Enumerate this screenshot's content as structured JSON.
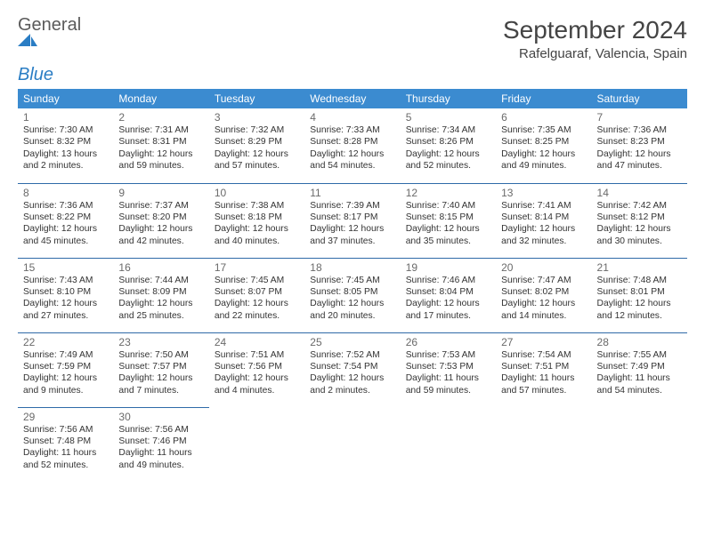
{
  "logo": {
    "word1": "General",
    "word2": "Blue"
  },
  "header": {
    "month_title": "September 2024",
    "location": "Rafelguaraf, Valencia, Spain"
  },
  "colors": {
    "header_bg": "#3b8bd0",
    "header_text": "#ffffff",
    "row_border": "#2f6aa8",
    "logo_blue": "#2a7dc4"
  },
  "day_labels": [
    "Sunday",
    "Monday",
    "Tuesday",
    "Wednesday",
    "Thursday",
    "Friday",
    "Saturday"
  ],
  "weeks": [
    [
      {
        "n": "1",
        "sr": "Sunrise: 7:30 AM",
        "ss": "Sunset: 8:32 PM",
        "dl": "Daylight: 13 hours and 2 minutes."
      },
      {
        "n": "2",
        "sr": "Sunrise: 7:31 AM",
        "ss": "Sunset: 8:31 PM",
        "dl": "Daylight: 12 hours and 59 minutes."
      },
      {
        "n": "3",
        "sr": "Sunrise: 7:32 AM",
        "ss": "Sunset: 8:29 PM",
        "dl": "Daylight: 12 hours and 57 minutes."
      },
      {
        "n": "4",
        "sr": "Sunrise: 7:33 AM",
        "ss": "Sunset: 8:28 PM",
        "dl": "Daylight: 12 hours and 54 minutes."
      },
      {
        "n": "5",
        "sr": "Sunrise: 7:34 AM",
        "ss": "Sunset: 8:26 PM",
        "dl": "Daylight: 12 hours and 52 minutes."
      },
      {
        "n": "6",
        "sr": "Sunrise: 7:35 AM",
        "ss": "Sunset: 8:25 PM",
        "dl": "Daylight: 12 hours and 49 minutes."
      },
      {
        "n": "7",
        "sr": "Sunrise: 7:36 AM",
        "ss": "Sunset: 8:23 PM",
        "dl": "Daylight: 12 hours and 47 minutes."
      }
    ],
    [
      {
        "n": "8",
        "sr": "Sunrise: 7:36 AM",
        "ss": "Sunset: 8:22 PM",
        "dl": "Daylight: 12 hours and 45 minutes."
      },
      {
        "n": "9",
        "sr": "Sunrise: 7:37 AM",
        "ss": "Sunset: 8:20 PM",
        "dl": "Daylight: 12 hours and 42 minutes."
      },
      {
        "n": "10",
        "sr": "Sunrise: 7:38 AM",
        "ss": "Sunset: 8:18 PM",
        "dl": "Daylight: 12 hours and 40 minutes."
      },
      {
        "n": "11",
        "sr": "Sunrise: 7:39 AM",
        "ss": "Sunset: 8:17 PM",
        "dl": "Daylight: 12 hours and 37 minutes."
      },
      {
        "n": "12",
        "sr": "Sunrise: 7:40 AM",
        "ss": "Sunset: 8:15 PM",
        "dl": "Daylight: 12 hours and 35 minutes."
      },
      {
        "n": "13",
        "sr": "Sunrise: 7:41 AM",
        "ss": "Sunset: 8:14 PM",
        "dl": "Daylight: 12 hours and 32 minutes."
      },
      {
        "n": "14",
        "sr": "Sunrise: 7:42 AM",
        "ss": "Sunset: 8:12 PM",
        "dl": "Daylight: 12 hours and 30 minutes."
      }
    ],
    [
      {
        "n": "15",
        "sr": "Sunrise: 7:43 AM",
        "ss": "Sunset: 8:10 PM",
        "dl": "Daylight: 12 hours and 27 minutes."
      },
      {
        "n": "16",
        "sr": "Sunrise: 7:44 AM",
        "ss": "Sunset: 8:09 PM",
        "dl": "Daylight: 12 hours and 25 minutes."
      },
      {
        "n": "17",
        "sr": "Sunrise: 7:45 AM",
        "ss": "Sunset: 8:07 PM",
        "dl": "Daylight: 12 hours and 22 minutes."
      },
      {
        "n": "18",
        "sr": "Sunrise: 7:45 AM",
        "ss": "Sunset: 8:05 PM",
        "dl": "Daylight: 12 hours and 20 minutes."
      },
      {
        "n": "19",
        "sr": "Sunrise: 7:46 AM",
        "ss": "Sunset: 8:04 PM",
        "dl": "Daylight: 12 hours and 17 minutes."
      },
      {
        "n": "20",
        "sr": "Sunrise: 7:47 AM",
        "ss": "Sunset: 8:02 PM",
        "dl": "Daylight: 12 hours and 14 minutes."
      },
      {
        "n": "21",
        "sr": "Sunrise: 7:48 AM",
        "ss": "Sunset: 8:01 PM",
        "dl": "Daylight: 12 hours and 12 minutes."
      }
    ],
    [
      {
        "n": "22",
        "sr": "Sunrise: 7:49 AM",
        "ss": "Sunset: 7:59 PM",
        "dl": "Daylight: 12 hours and 9 minutes."
      },
      {
        "n": "23",
        "sr": "Sunrise: 7:50 AM",
        "ss": "Sunset: 7:57 PM",
        "dl": "Daylight: 12 hours and 7 minutes."
      },
      {
        "n": "24",
        "sr": "Sunrise: 7:51 AM",
        "ss": "Sunset: 7:56 PM",
        "dl": "Daylight: 12 hours and 4 minutes."
      },
      {
        "n": "25",
        "sr": "Sunrise: 7:52 AM",
        "ss": "Sunset: 7:54 PM",
        "dl": "Daylight: 12 hours and 2 minutes."
      },
      {
        "n": "26",
        "sr": "Sunrise: 7:53 AM",
        "ss": "Sunset: 7:53 PM",
        "dl": "Daylight: 11 hours and 59 minutes."
      },
      {
        "n": "27",
        "sr": "Sunrise: 7:54 AM",
        "ss": "Sunset: 7:51 PM",
        "dl": "Daylight: 11 hours and 57 minutes."
      },
      {
        "n": "28",
        "sr": "Sunrise: 7:55 AM",
        "ss": "Sunset: 7:49 PM",
        "dl": "Daylight: 11 hours and 54 minutes."
      }
    ],
    [
      {
        "n": "29",
        "sr": "Sunrise: 7:56 AM",
        "ss": "Sunset: 7:48 PM",
        "dl": "Daylight: 11 hours and 52 minutes."
      },
      {
        "n": "30",
        "sr": "Sunrise: 7:56 AM",
        "ss": "Sunset: 7:46 PM",
        "dl": "Daylight: 11 hours and 49 minutes."
      },
      null,
      null,
      null,
      null,
      null
    ]
  ]
}
